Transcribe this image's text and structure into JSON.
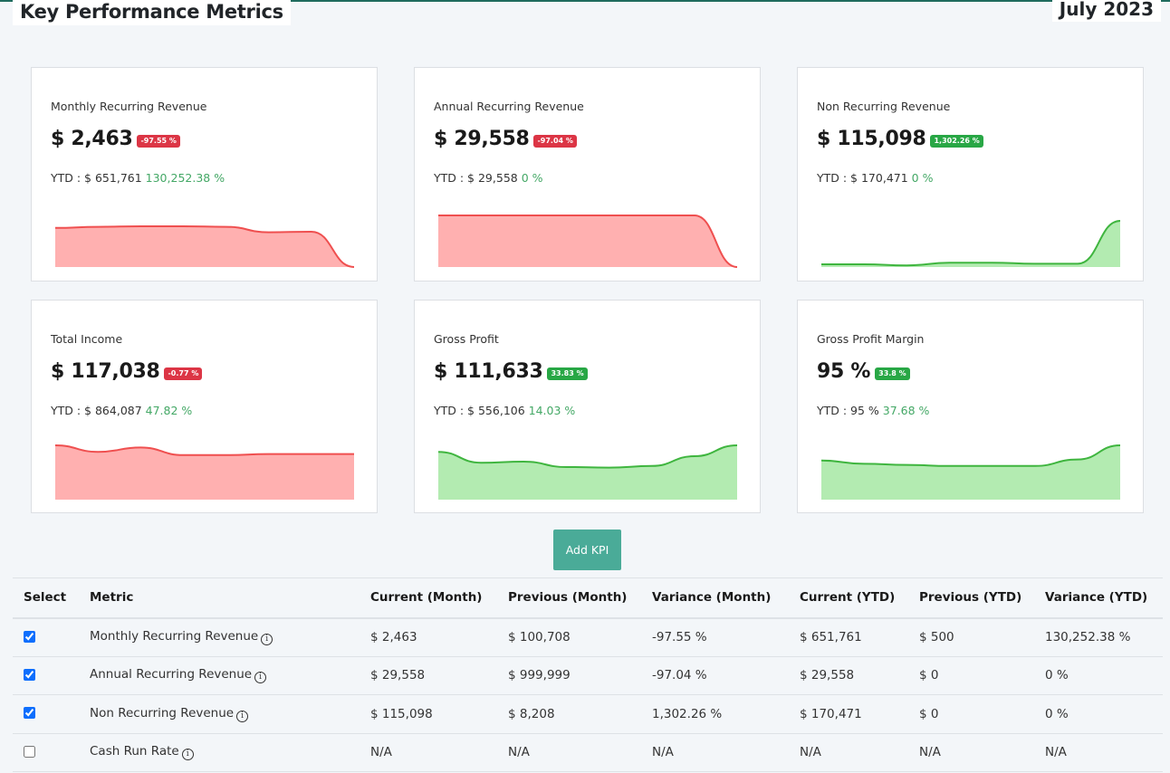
{
  "header": {
    "title": "Key Performance Metrics",
    "period": "July 2023"
  },
  "colors": {
    "negative": "#dc3545",
    "positive": "#28a745",
    "accent": "#4aab98",
    "red_fill": "#ffb0b0",
    "red_line": "#ef4f4f",
    "green_fill": "#b3ebb1",
    "green_line": "#3fb53f"
  },
  "cards": [
    {
      "name": "Monthly Recurring Revenue",
      "value": "$ 2,463",
      "badge": "-97.55 %",
      "trend": "negative",
      "ytd_label": "YTD : $ 651,761",
      "ytd_pct": "130,252.38 %",
      "spark": [
        0.72,
        0.74,
        0.75,
        0.75,
        0.74,
        0.64,
        0.65,
        0.0
      ]
    },
    {
      "name": "Annual Recurring Revenue",
      "value": "$ 29,558",
      "badge": "-97.04 %",
      "trend": "negative",
      "ytd_label": "YTD : $ 29,558",
      "ytd_pct": "0 %",
      "spark": [
        0.95,
        0.95,
        0.95,
        0.95,
        0.95,
        0.95,
        0.95,
        0.0
      ]
    },
    {
      "name": "Non Recurring Revenue",
      "value": "$ 115,098",
      "badge": "1,302.26 %",
      "trend": "positive",
      "ytd_label": "YTD : $ 170,471",
      "ytd_pct": "0 %",
      "spark": [
        0.05,
        0.05,
        0.03,
        0.08,
        0.08,
        0.06,
        0.06,
        0.85
      ]
    },
    {
      "name": "Total Income",
      "value": "$ 117,038",
      "badge": "-0.77 %",
      "trend": "negative",
      "ytd_label": "YTD : $ 864,087",
      "ytd_pct": "47.82 %",
      "spark": [
        1.0,
        0.88,
        0.96,
        0.82,
        0.82,
        0.84,
        0.84,
        0.84
      ]
    },
    {
      "name": "Gross Profit",
      "value": "$ 111,633",
      "badge": "33.83 %",
      "trend": "positive",
      "ytd_label": "YTD : $ 556,106",
      "ytd_pct": "14.03 %",
      "spark": [
        0.88,
        0.68,
        0.7,
        0.6,
        0.59,
        0.62,
        0.8,
        1.0
      ]
    },
    {
      "name": "Gross Profit Margin",
      "value": "95 %",
      "badge": "33.8 %",
      "trend": "positive",
      "ytd_label": "YTD : 95 %",
      "ytd_pct": "37.68 %",
      "spark": [
        0.72,
        0.66,
        0.64,
        0.62,
        0.62,
        0.62,
        0.74,
        1.0
      ]
    }
  ],
  "actions": {
    "add_kpi": "Add KPI"
  },
  "table": {
    "headers": [
      "Select",
      "Metric",
      "Current (Month)",
      "Previous (Month)",
      "Variance (Month)",
      "Current (YTD)",
      "Previous (YTD)",
      "Variance (YTD)"
    ],
    "rows": [
      {
        "checked": true,
        "cells": [
          "Monthly Recurring Revenue",
          "$ 2,463",
          "$ 100,708",
          "-97.55 %",
          "$ 651,761",
          "$ 500",
          "130,252.38 %"
        ]
      },
      {
        "checked": true,
        "cells": [
          "Annual Recurring Revenue",
          "$ 29,558",
          "$ 999,999",
          "-97.04 %",
          "$ 29,558",
          "$ 0",
          "0 %"
        ]
      },
      {
        "checked": true,
        "cells": [
          "Non Recurring Revenue",
          "$ 115,098",
          "$ 8,208",
          "1,302.26 %",
          "$ 170,471",
          "$ 0",
          "0 %"
        ]
      },
      {
        "checked": false,
        "cells": [
          "Cash Run Rate",
          "N/A",
          "N/A",
          "N/A",
          "N/A",
          "N/A",
          "N/A"
        ]
      }
    ],
    "info_glyph": "i"
  }
}
